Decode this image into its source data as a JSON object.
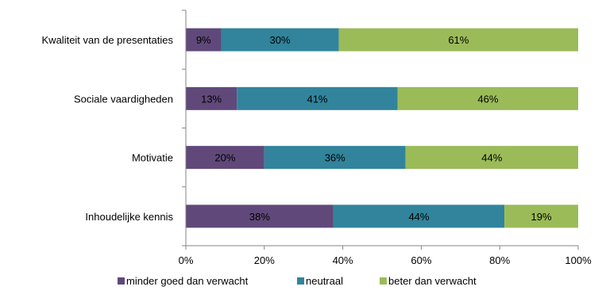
{
  "chart_data": {
    "type": "bar",
    "orientation": "horizontal",
    "stacked": true,
    "percent_stacked": true,
    "categories": [
      "Kwaliteit van de presentaties",
      "Sociale vaardigheden",
      "Motivatie",
      "Inhoudelijke kennis"
    ],
    "series": [
      {
        "name": "minder goed dan verwacht",
        "color": "#60497a",
        "values": [
          9,
          13,
          20,
          38
        ],
        "labels": [
          "9%",
          "13%",
          "20%",
          "38%"
        ]
      },
      {
        "name": "neutraal",
        "color": "#31849b",
        "values": [
          30,
          41,
          36,
          44
        ],
        "labels": [
          "30%",
          "41%",
          "36%",
          "44%"
        ]
      },
      {
        "name": "beter dan verwacht",
        "color": "#9bbb59",
        "values": [
          61,
          46,
          44,
          19
        ],
        "labels": [
          "61%",
          "46%",
          "44%",
          "19%"
        ]
      }
    ],
    "xticks": [
      "0%",
      "20%",
      "40%",
      "60%",
      "80%",
      "100%"
    ],
    "xlim": [
      0,
      100
    ],
    "legend": "bottom",
    "grid": false
  }
}
